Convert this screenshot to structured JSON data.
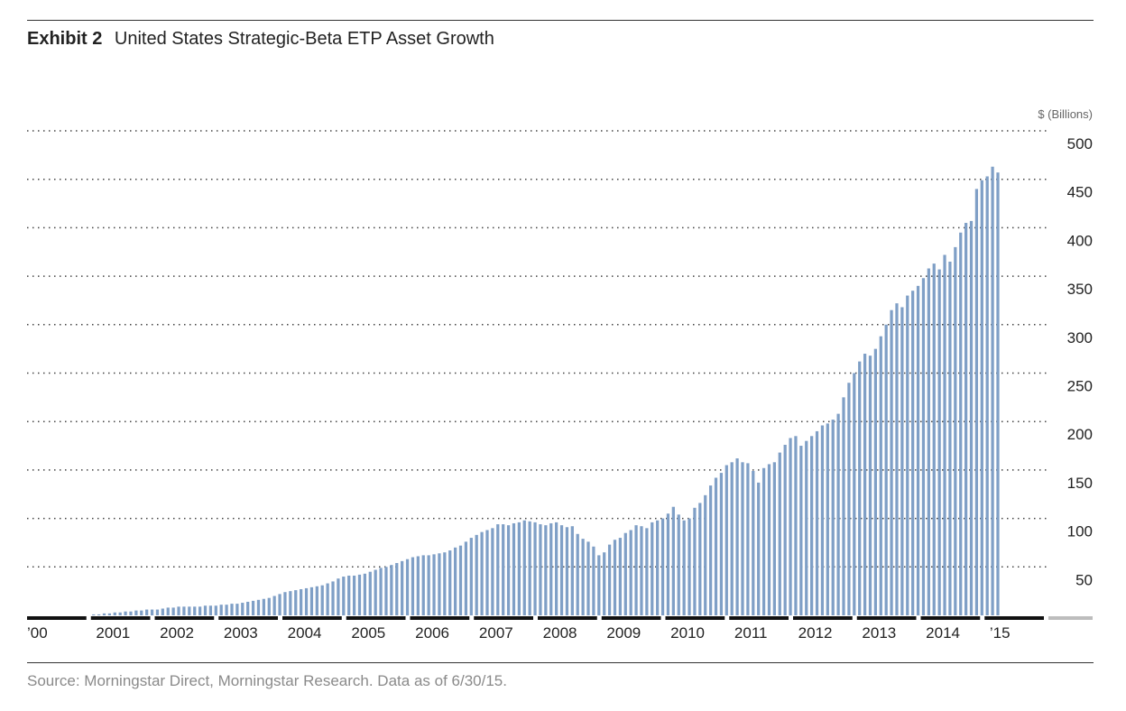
{
  "header": {
    "exhibit_label": "Exhibit 2",
    "title": "United States Strategic-Beta ETP Asset Growth"
  },
  "footer": {
    "source": "Source: Morningstar Direct, Morningstar Research. Data as of 6/30/15."
  },
  "colors": {
    "bar": "#7f9fc6",
    "axis": "#111111",
    "axis_future": "#bdbdbd",
    "grid": "#444444"
  },
  "chart_data": {
    "type": "bar",
    "title": "United States Strategic-Beta ETP Asset Growth",
    "ylabel": "$ (Billions)",
    "xlabel": "",
    "ylim": [
      0,
      500
    ],
    "yticks": [
      50,
      100,
      150,
      200,
      250,
      300,
      350,
      400,
      450,
      500
    ],
    "grid": "dotted horizontal",
    "x_axis_labels": [
      "’00",
      "2001",
      "2002",
      "2003",
      "2004",
      "2005",
      "2006",
      "2007",
      "2008",
      "2009",
      "2010",
      "2011",
      "2012",
      "2013",
      "2014",
      "’15"
    ],
    "frequency": "monthly",
    "period": "2000 to June 2015",
    "series": [
      {
        "values": [
          0,
          0,
          0,
          0,
          0,
          0,
          0,
          0,
          0,
          0,
          0,
          0,
          1,
          1,
          2,
          2,
          3,
          3,
          4,
          4,
          5,
          5,
          6,
          6,
          6,
          7,
          8,
          8,
          9,
          9,
          9,
          9,
          9,
          10,
          10,
          10,
          11,
          11,
          12,
          12,
          13,
          14,
          15,
          16,
          17,
          18,
          20,
          22,
          24,
          25,
          26,
          27,
          28,
          29,
          30,
          31,
          33,
          35,
          38,
          40,
          41,
          41,
          42,
          43,
          45,
          47,
          49,
          50,
          52,
          54,
          56,
          58,
          60,
          61,
          62,
          62,
          63,
          64,
          65,
          67,
          70,
          72,
          76,
          80,
          83,
          86,
          88,
          90,
          94,
          94,
          93,
          95,
          96,
          98,
          97,
          96,
          94,
          93,
          95,
          96,
          93,
          91,
          92,
          84,
          79,
          76,
          71,
          62,
          65,
          73,
          78,
          80,
          85,
          88,
          93,
          92,
          90,
          96,
          98,
          100,
          105,
          112,
          104,
          98,
          100,
          111,
          116,
          124,
          134,
          142,
          147,
          155,
          158,
          162,
          158,
          157,
          149,
          137,
          152,
          156,
          158,
          168,
          176,
          183,
          185,
          175,
          180,
          185,
          190,
          196,
          198,
          202,
          208,
          225,
          240,
          250,
          262,
          270,
          268,
          275,
          288,
          300,
          315,
          322,
          318,
          330,
          335,
          340,
          348,
          358,
          363,
          357,
          372,
          365,
          380,
          395,
          405,
          407,
          440,
          449,
          453,
          463,
          457
        ]
      }
    ]
  }
}
